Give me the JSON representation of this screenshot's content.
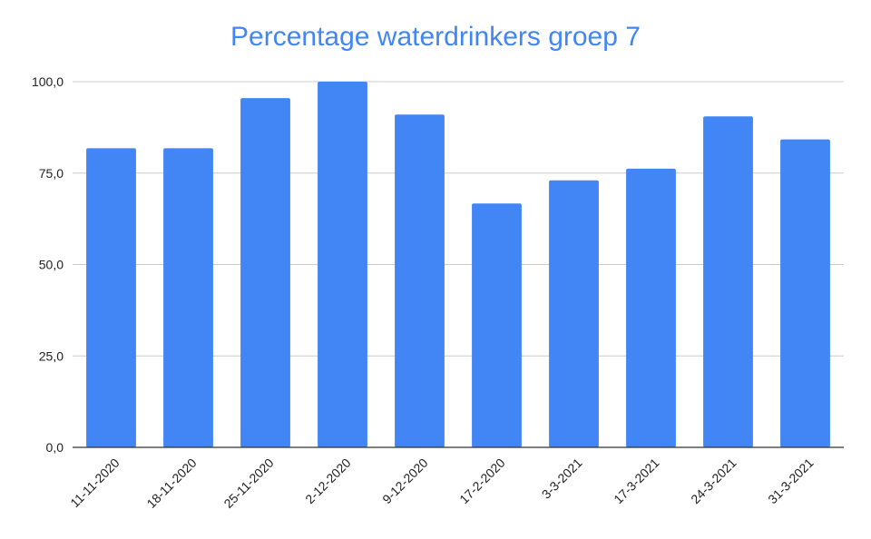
{
  "chart_data": {
    "type": "bar",
    "title": "Percentage waterdrinkers groep 7",
    "categories": [
      "11-11-2020",
      "18-11-2020",
      "25-11-2020",
      "2-12-2020",
      "9-12-2020",
      "17-2-2020",
      "3-3-2021",
      "17-3-2021",
      "24-3-2021",
      "31-3-2021"
    ],
    "values": [
      81.8,
      81.8,
      95.5,
      100.0,
      91.0,
      66.7,
      73.0,
      76.2,
      90.5,
      84.2
    ],
    "yticks": [
      "0,0",
      "25,0",
      "50,0",
      "75,0",
      "100,0"
    ],
    "ylim": [
      0,
      100
    ],
    "xlabel": "",
    "ylabel": "",
    "grid": true,
    "legend": "none",
    "bar_color": "#4285f4",
    "title_color": "#4285f4"
  }
}
